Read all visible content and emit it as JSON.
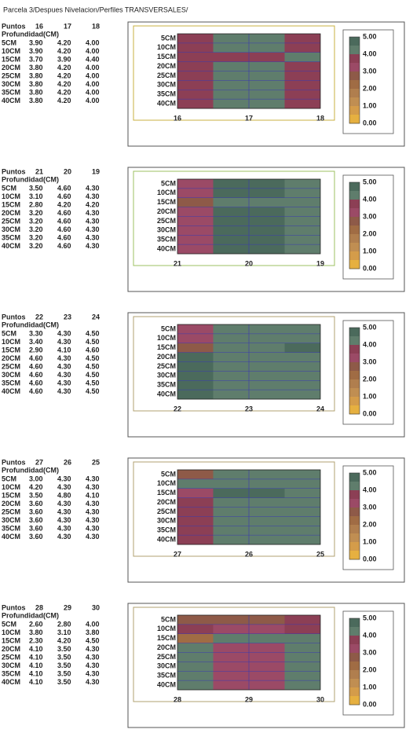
{
  "header": {
    "title": "Parcela 3/Despues Nivelacion/Perfiles TRANSVERSALES/"
  },
  "legend": {
    "labels": [
      "5.00",
      "4.00",
      "3.00",
      "2.00",
      "1.00",
      "0.00"
    ],
    "colors": [
      "#4b6a5c",
      "#5f7d6c",
      "#8c3f55",
      "#9b4a66",
      "#8e5a48",
      "#a06c44",
      "#b07e4e",
      "#c08e52",
      "#d49c4a",
      "#e6b040"
    ]
  },
  "panels": [
    {
      "puntos_label": "Puntos",
      "points": [
        "16",
        "17",
        "18"
      ],
      "depth_label": "Profundidad(CM)",
      "rows": [
        {
          "depth": "5CM",
          "values": [
            "3.90",
            "4.20",
            "4.00"
          ]
        },
        {
          "depth": "10CM",
          "values": [
            "3.90",
            "4.20",
            "4.00"
          ]
        },
        {
          "depth": "15CM",
          "values": [
            "3.70",
            "3.90",
            "4.40"
          ]
        },
        {
          "depth": "20CM",
          "values": [
            "3.80",
            "4.20",
            "4.00"
          ]
        },
        {
          "depth": "25CM",
          "values": [
            "3.80",
            "4.20",
            "4.00"
          ]
        },
        {
          "depth": "30CM",
          "values": [
            "3.80",
            "4.20",
            "4.00"
          ]
        },
        {
          "depth": "35CM",
          "values": [
            "3.80",
            "4.20",
            "4.00"
          ]
        },
        {
          "depth": "40CM",
          "values": [
            "3.80",
            "4.20",
            "4.00"
          ]
        }
      ]
    },
    {
      "puntos_label": "Puntos",
      "points": [
        "21",
        "20",
        "19"
      ],
      "depth_label": "Profundidad(CM)",
      "rows": [
        {
          "depth": "5CM",
          "values": [
            "3.50",
            "4.60",
            "4.30"
          ]
        },
        {
          "depth": "10CM",
          "values": [
            "3.10",
            "4.60",
            "4.30"
          ]
        },
        {
          "depth": "15CM",
          "values": [
            "2.80",
            "4.20",
            "4.20"
          ]
        },
        {
          "depth": "20CM",
          "values": [
            "3.20",
            "4.60",
            "4.30"
          ]
        },
        {
          "depth": "25CM",
          "values": [
            "3.20",
            "4.60",
            "4.30"
          ]
        },
        {
          "depth": "30CM",
          "values": [
            "3.20",
            "4.60",
            "4.30"
          ]
        },
        {
          "depth": "35CM",
          "values": [
            "3.20",
            "4.60",
            "4.30"
          ]
        },
        {
          "depth": "40CM",
          "values": [
            "3.20",
            "4.60",
            "4.30"
          ]
        }
      ]
    },
    {
      "puntos_label": "Puntos",
      "points": [
        "22",
        "23",
        "24"
      ],
      "depth_label": "Profundidad(CM)",
      "rows": [
        {
          "depth": "5CM",
          "values": [
            "3.30",
            "4.30",
            "4.50"
          ]
        },
        {
          "depth": "10CM",
          "values": [
            "3.40",
            "4.30",
            "4.50"
          ]
        },
        {
          "depth": "15CM",
          "values": [
            "2.90",
            "4.10",
            "4.60"
          ]
        },
        {
          "depth": "20CM",
          "values": [
            "4.60",
            "4.30",
            "4.50"
          ]
        },
        {
          "depth": "25CM",
          "values": [
            "4.60",
            "4.30",
            "4.50"
          ]
        },
        {
          "depth": "30CM",
          "values": [
            "4.60",
            "4.30",
            "4.50"
          ]
        },
        {
          "depth": "35CM",
          "values": [
            "4.60",
            "4.30",
            "4.50"
          ]
        },
        {
          "depth": "40CM",
          "values": [
            "4.60",
            "4.30",
            "4.50"
          ]
        }
      ]
    },
    {
      "puntos_label": "Puntos",
      "points": [
        "27",
        "26",
        "25"
      ],
      "depth_label": "Profundidad(CM)",
      "rows": [
        {
          "depth": "5CM",
          "values": [
            "3.00",
            "4.30",
            "4.30"
          ]
        },
        {
          "depth": "10CM",
          "values": [
            "4.20",
            "4.30",
            "4.30"
          ]
        },
        {
          "depth": "15CM",
          "values": [
            "3.50",
            "4.80",
            "4.10"
          ]
        },
        {
          "depth": "20CM",
          "values": [
            "3.60",
            "4.30",
            "4.30"
          ]
        },
        {
          "depth": "25CM",
          "values": [
            "3.60",
            "4.30",
            "4.30"
          ]
        },
        {
          "depth": "30CM",
          "values": [
            "3.60",
            "4.30",
            "4.30"
          ]
        },
        {
          "depth": "35CM",
          "values": [
            "3.60",
            "4.30",
            "4.30"
          ]
        },
        {
          "depth": "40CM",
          "values": [
            "3.60",
            "4.30",
            "4.30"
          ]
        }
      ]
    },
    {
      "puntos_label": "Puntos",
      "points": [
        "28",
        "29",
        "30"
      ],
      "depth_label": "Profundidad(CM)",
      "rows": [
        {
          "depth": "5CM",
          "values": [
            "2.60",
            "2.80",
            "4.00"
          ]
        },
        {
          "depth": "10CM",
          "values": [
            "3.80",
            "3.10",
            "3.80"
          ]
        },
        {
          "depth": "15CM",
          "values": [
            "2.30",
            "4.20",
            "4.50"
          ]
        },
        {
          "depth": "20CM",
          "values": [
            "4.10",
            "3.50",
            "4.30"
          ]
        },
        {
          "depth": "25CM",
          "values": [
            "4.10",
            "3.50",
            "4.30"
          ]
        },
        {
          "depth": "30CM",
          "values": [
            "4.10",
            "3.50",
            "4.30"
          ]
        },
        {
          "depth": "35CM",
          "values": [
            "4.10",
            "3.50",
            "4.30"
          ]
        },
        {
          "depth": "40CM",
          "values": [
            "4.10",
            "3.50",
            "4.30"
          ]
        }
      ]
    }
  ]
}
